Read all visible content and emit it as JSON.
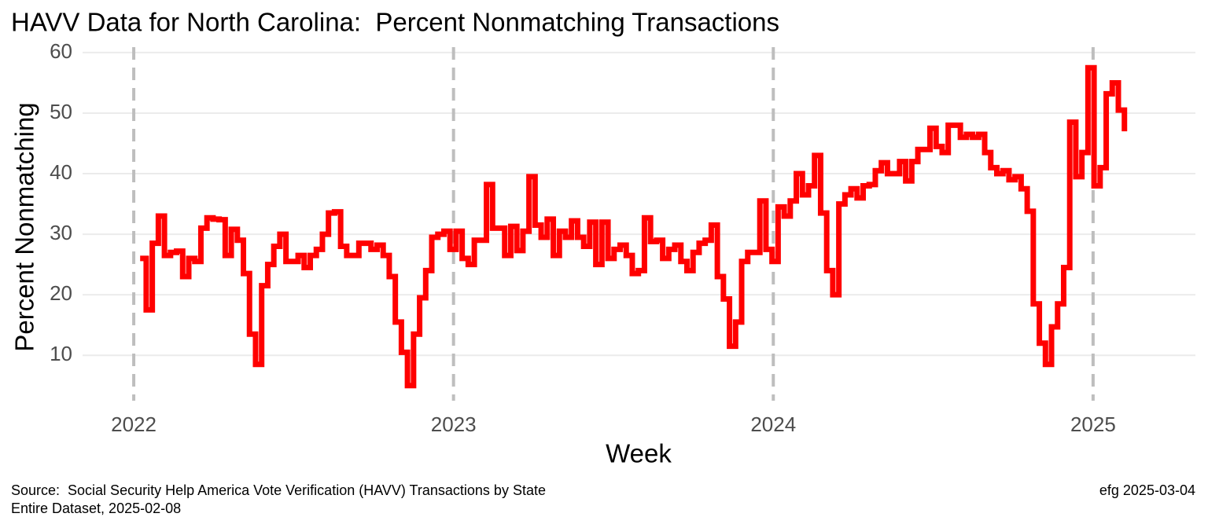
{
  "chart_data": {
    "type": "step",
    "title": "HAVV Data for North Carolina:  Percent Nonmatching Transactions",
    "xlabel": "Week",
    "ylabel": "Percent Nonmatching",
    "caption": [
      "Source:  Social Security Help America Vote Verification (HAVV) Transactions by State",
      "Entire Dataset, 2025-02-08"
    ],
    "caption_right": "efg 2025-03-04",
    "xlim": [
      2021.84,
      2025.32
    ],
    "xticks": [
      2022,
      2023,
      2024,
      2025
    ],
    "ylim": [
      2.5,
      60.9
    ],
    "yticks": [
      10,
      20,
      30,
      40,
      50,
      60
    ],
    "grid": true,
    "x_grid_style": "dashed",
    "series": [
      {
        "color": "#ff0000",
        "x": [
          2022.02,
          2022.039,
          2022.058,
          2022.077,
          2022.096,
          2022.115,
          2022.134,
          2022.153,
          2022.172,
          2022.191,
          2022.21,
          2022.229,
          2022.248,
          2022.267,
          2022.286,
          2022.305,
          2022.324,
          2022.343,
          2022.362,
          2022.381,
          2022.4,
          2022.419,
          2022.438,
          2022.457,
          2022.476,
          2022.495,
          2022.514,
          2022.533,
          2022.552,
          2022.571,
          2022.59,
          2022.609,
          2022.628,
          2022.647,
          2022.666,
          2022.685,
          2022.704,
          2022.723,
          2022.742,
          2022.761,
          2022.78,
          2022.799,
          2022.818,
          2022.837,
          2022.856,
          2022.875,
          2022.894,
          2022.913,
          2022.932,
          2022.951,
          2022.97,
          2022.989,
          2023.008,
          2023.027,
          2023.046,
          2023.065,
          2023.084,
          2023.103,
          2023.122,
          2023.141,
          2023.16,
          2023.179,
          2023.198,
          2023.217,
          2023.236,
          2023.255,
          2023.274,
          2023.293,
          2023.312,
          2023.331,
          2023.35,
          2023.369,
          2023.388,
          2023.407,
          2023.426,
          2023.445,
          2023.464,
          2023.483,
          2023.502,
          2023.521,
          2023.54,
          2023.559,
          2023.578,
          2023.597,
          2023.616,
          2023.635,
          2023.654,
          2023.673,
          2023.692,
          2023.711,
          2023.73,
          2023.749,
          2023.768,
          2023.787,
          2023.806,
          2023.825,
          2023.844,
          2023.863,
          2023.882,
          2023.901,
          2023.92,
          2023.939,
          2023.958,
          2023.977,
          2023.996,
          2024.015,
          2024.034,
          2024.053,
          2024.072,
          2024.091,
          2024.11,
          2024.129,
          2024.148,
          2024.167,
          2024.186,
          2024.205,
          2024.224,
          2024.243,
          2024.262,
          2024.281,
          2024.3,
          2024.319,
          2024.338,
          2024.357,
          2024.376,
          2024.395,
          2024.414,
          2024.433,
          2024.452,
          2024.471,
          2024.49,
          2024.509,
          2024.528,
          2024.547,
          2024.566,
          2024.585,
          2024.604,
          2024.623,
          2024.642,
          2024.661,
          2024.68,
          2024.699,
          2024.718,
          2024.737,
          2024.756,
          2024.775,
          2024.794,
          2024.813,
          2024.832,
          2024.851,
          2024.87,
          2024.889,
          2024.908,
          2024.927,
          2024.946,
          2024.965,
          2024.984,
          2025.003,
          2025.022,
          2025.041,
          2025.06,
          2025.079,
          2025.098
        ],
        "values": [
          26,
          17.5,
          28.5,
          33,
          26.5,
          27,
          27.2,
          23,
          26,
          25.5,
          31,
          32.7,
          32.5,
          32.4,
          26.5,
          30.8,
          29,
          23.5,
          13.5,
          8.5,
          21.5,
          25,
          28,
          30,
          25.5,
          25.5,
          26.5,
          24.5,
          26.5,
          27.5,
          30,
          33.5,
          33.7,
          28,
          26.5,
          26.5,
          28.5,
          28.5,
          27.5,
          28.2,
          26.5,
          23,
          15.5,
          10.5,
          5,
          13.5,
          19.5,
          24,
          29.5,
          30,
          30.5,
          27.5,
          30.5,
          26,
          25,
          29,
          29,
          38.2,
          31,
          31,
          26.5,
          31.3,
          27.3,
          30.5,
          39.5,
          31.5,
          29.5,
          32.5,
          26.5,
          30.5,
          29.5,
          32.2,
          29.5,
          28,
          32,
          25,
          32,
          26,
          27.5,
          28.2,
          26.5,
          23.5,
          24,
          32.7,
          28.8,
          29,
          26,
          27.5,
          28.2,
          25.5,
          24,
          27,
          28.5,
          29,
          31.5,
          23,
          19.3,
          11.5,
          15.5,
          25.5,
          27,
          27,
          35.5,
          27.5,
          25.5,
          34.5,
          33,
          35.5,
          40,
          36.5,
          38,
          43,
          33.5,
          24,
          20,
          35,
          36.5,
          37.5,
          36,
          38,
          38.2,
          40.5,
          41.8,
          40,
          40,
          42,
          38.8,
          42,
          44,
          44,
          47.5,
          44.5,
          43.5,
          48,
          48,
          46,
          46.5,
          46,
          46.5,
          43.5,
          41,
          40,
          40.5,
          39,
          39.5,
          37.5,
          33.8,
          18.5,
          12,
          8.5,
          14.7,
          18.5,
          24.5,
          48.5,
          39.5,
          43.5,
          57.5,
          38,
          41,
          53.2,
          55,
          50.5,
          47
        ]
      }
    ]
  }
}
